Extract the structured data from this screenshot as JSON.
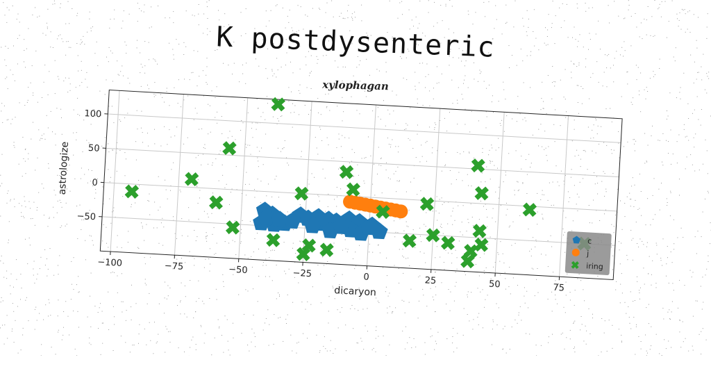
{
  "chart_data": {
    "type": "scatter",
    "title": "K postdysenteric",
    "subtitle": "xylophagan",
    "xlabel": "dicaryon",
    "ylabel": "astrologize",
    "xlim": [
      -104,
      96
    ],
    "ylim": [
      -100,
      135
    ],
    "xticks": [
      -100,
      -75,
      -50,
      -25,
      0,
      25,
      50,
      75
    ],
    "xtick_labels": [
      "−100",
      "−75",
      "−50",
      "−25",
      "0",
      "25",
      "50",
      "75"
    ],
    "yticks": [
      -50,
      0,
      50,
      100
    ],
    "ytick_labels": [
      "−50",
      "0",
      "50",
      "100"
    ],
    "grid": true,
    "legend_position": "lower-right",
    "series": [
      {
        "name": "c",
        "marker": "pentagon",
        "color": "#1f77b4",
        "points": [
          [
            -41,
            -28
          ],
          [
            -38,
            -33
          ],
          [
            -42,
            -46
          ],
          [
            -37,
            -47
          ],
          [
            -33,
            -45
          ],
          [
            -40,
            -38
          ],
          [
            -27,
            -32
          ],
          [
            -24,
            -36
          ],
          [
            -20,
            -33
          ],
          [
            -16,
            -36
          ],
          [
            -13,
            -38
          ],
          [
            -8,
            -34
          ],
          [
            -4,
            -37
          ],
          [
            1,
            -41
          ],
          [
            -19,
            -42
          ],
          [
            -15,
            -52
          ],
          [
            -7,
            -49
          ],
          [
            -3,
            -53
          ],
          [
            4,
            -49
          ],
          [
            -22,
            -46
          ],
          [
            -11,
            -45
          ],
          [
            -30,
            -41
          ],
          [
            -35,
            -40
          ],
          [
            0,
            -44
          ]
        ]
      },
      {
        "name": "j",
        "marker": "circle",
        "color": "#ff7f0e",
        "points": [
          [
            -8,
            -8
          ],
          [
            -6,
            -9
          ],
          [
            -4,
            -10
          ],
          [
            -2,
            -11
          ],
          [
            0,
            -12
          ],
          [
            2,
            -13
          ],
          [
            4,
            -14
          ],
          [
            6,
            -15
          ],
          [
            8,
            -16
          ],
          [
            10,
            -17
          ],
          [
            12,
            -18
          ]
        ]
      },
      {
        "name": "iring",
        "marker": "x",
        "color": "#2ca02c",
        "points": [
          [
            -93,
            -11
          ],
          [
            -70,
            12
          ],
          [
            -60,
            -20
          ],
          [
            -56,
            60
          ],
          [
            -53,
            -55
          ],
          [
            -38,
            128
          ],
          [
            -37,
            -70
          ],
          [
            -27,
            0
          ],
          [
            -25,
            -88
          ],
          [
            -23,
            -75
          ],
          [
            -16,
            -80
          ],
          [
            -10,
            35
          ],
          [
            -7,
            10
          ],
          [
            5,
            -20
          ],
          [
            16,
            -60
          ],
          [
            22,
            -5
          ],
          [
            25,
            -50
          ],
          [
            31,
            -60
          ],
          [
            40,
            -70
          ],
          [
            39,
            -85
          ],
          [
            44,
            -60
          ],
          [
            43,
            -40
          ],
          [
            41,
            55
          ],
          [
            43,
            15
          ],
          [
            62,
            -5
          ],
          [
            84,
            -50
          ]
        ]
      }
    ]
  }
}
